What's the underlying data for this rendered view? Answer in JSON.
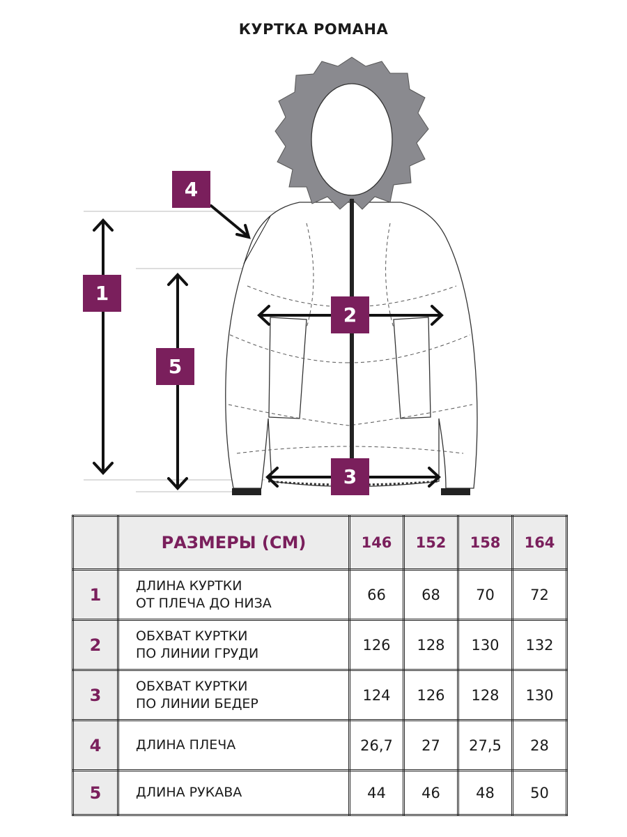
{
  "title": "КУРТКА РОМАНА",
  "accent_color": "#7a1f5c",
  "diagram_markers": [
    "1",
    "2",
    "3",
    "4",
    "5"
  ],
  "table": {
    "header_label": "РАЗМЕРЫ (СМ)",
    "sizes": [
      "146",
      "152",
      "158",
      "164"
    ],
    "rows": [
      {
        "num": "1",
        "label_line1": "ДЛИНА КУРТКИ",
        "label_line2": "ОТ ПЛЕЧА ДО НИЗА",
        "values": [
          "66",
          "68",
          "70",
          "72"
        ]
      },
      {
        "num": "2",
        "label_line1": "ОБХВАТ КУРТКИ",
        "label_line2": "ПО ЛИНИИ ГРУДИ",
        "values": [
          "126",
          "128",
          "130",
          "132"
        ]
      },
      {
        "num": "3",
        "label_line1": "ОБХВАТ КУРТКИ",
        "label_line2": "ПО ЛИНИИ БЕДЕР",
        "values": [
          "124",
          "126",
          "128",
          "130"
        ]
      },
      {
        "num": "4",
        "label_line1": "ДЛИНА ПЛЕЧА",
        "label_line2": "",
        "values": [
          "26,7",
          "27",
          "27,5",
          "28"
        ]
      },
      {
        "num": "5",
        "label_line1": "ДЛИНА РУКАВА",
        "label_line2": "",
        "values": [
          "44",
          "46",
          "48",
          "50"
        ]
      }
    ]
  }
}
